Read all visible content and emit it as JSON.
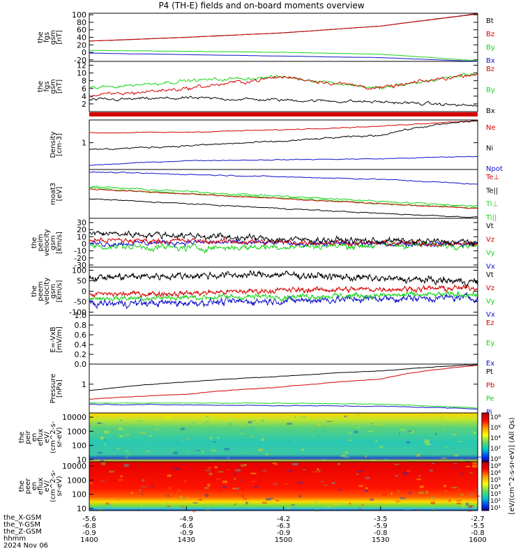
{
  "title": "P4 (TH-E) fields and on-board moments overview",
  "colors": {
    "black": "#000000",
    "red": "#d40000",
    "green": "#16d416",
    "blue": "#1010c8"
  },
  "panels": [
    {
      "id": "fgs-gsm-big",
      "ylabel": [
        "the",
        "fgs",
        "gsm",
        "[nT]"
      ],
      "ylim": [
        -24,
        104
      ],
      "yticks": [
        "100",
        "80",
        "60",
        "40",
        "20",
        "0",
        "-20"
      ],
      "yticks_v": [
        100,
        80,
        60,
        40,
        20,
        0,
        -20
      ],
      "legend": [
        {
          "text": "Bt",
          "color": "#000000"
        },
        {
          "text": "Bz",
          "color": "#d40000"
        },
        {
          "text": "By",
          "color": "#16d416"
        },
        {
          "text": "Bx",
          "color": "#1010c8"
        }
      ]
    },
    {
      "id": "fgs-gsm-small",
      "ylabel": [
        "the",
        "fgs",
        "gsm",
        "[nT]"
      ],
      "ylim": [
        0,
        13
      ],
      "yticks": [
        "12",
        "10",
        "8",
        "6",
        "4",
        "2"
      ],
      "yticks_v": [
        12,
        10,
        8,
        6,
        4,
        2
      ],
      "legend": [
        {
          "text": "Bz",
          "color": "#d40000"
        },
        {
          "text": "By",
          "color": "#16d416"
        },
        {
          "text": "Bx",
          "color": "#000000"
        }
      ]
    },
    {
      "id": "density",
      "ylabel": [
        "Density",
        "[cm-3]"
      ],
      "log": true,
      "ylim": [
        0.15,
        5
      ],
      "yticks": [
        "1"
      ],
      "yticks_v": [
        1
      ],
      "legend": [
        {
          "text": "Ne",
          "color": "#d40000"
        },
        {
          "text": "Ni",
          "color": "#000000"
        },
        {
          "text": "Npot",
          "color": "#1010c8"
        }
      ]
    },
    {
      "id": "temperature",
      "ylabel": [
        "moat3",
        "[eV]"
      ],
      "ylim": [
        0,
        1
      ],
      "yticks": [],
      "yticks_v": [],
      "legend": [
        {
          "text": "Te⊥",
          "color": "#d40000"
        },
        {
          "text": "Te||",
          "color": "#000000"
        },
        {
          "text": "Ti⊥",
          "color": "#16d416"
        },
        {
          "text": "Ti||",
          "color": "#16d416"
        }
      ]
    },
    {
      "id": "peim-velocity",
      "ylabel": [
        "the",
        "peim",
        "velocity",
        "gsm",
        "[km/s]"
      ],
      "ylim": [
        -33,
        36
      ],
      "yticks": [
        "30",
        "20",
        "10",
        "0",
        "-10",
        "-20",
        "-30"
      ],
      "yticks_v": [
        30,
        20,
        10,
        0,
        -10,
        -20,
        -30
      ],
      "legend": [
        {
          "text": "Vt",
          "color": "#000000"
        },
        {
          "text": "Vz",
          "color": "#d40000"
        },
        {
          "text": "Vy",
          "color": "#16d416"
        },
        {
          "text": "Vx",
          "color": "#1010c8"
        }
      ]
    },
    {
      "id": "peem-velocity",
      "ylabel": [
        "the",
        "peem",
        "velocity",
        "gsm",
        "[km/s]"
      ],
      "ylim": [
        -115,
        115
      ],
      "yticks": [
        "100",
        "50",
        "0",
        "-50",
        "-100"
      ],
      "yticks_v": [
        100,
        50,
        0,
        -50,
        -100
      ],
      "legend": [
        {
          "text": "Vt",
          "color": "#000000"
        },
        {
          "text": "Vz",
          "color": "#d40000"
        },
        {
          "text": "Vy",
          "color": "#16d416"
        },
        {
          "text": "Vx",
          "color": "#1010c8"
        }
      ]
    },
    {
      "id": "efield",
      "ylabel": [
        "E=-VxB",
        "[mV/m]"
      ],
      "ylim": [
        0,
        1
      ],
      "yticks": [
        "1.0",
        "0.8",
        "0.6",
        "0.4",
        "0.2",
        "0.0"
      ],
      "yticks_v": [
        1.0,
        0.8,
        0.6,
        0.4,
        0.2,
        0.0
      ],
      "legend": [
        {
          "text": "Ez",
          "color": "#d40000"
        },
        {
          "text": "Ey",
          "color": "#16d416"
        },
        {
          "text": "Ex",
          "color": "#1010c8"
        }
      ]
    },
    {
      "id": "pressure",
      "ylabel": [
        "Pressure",
        "[nPa]"
      ],
      "log": true,
      "ylim": [
        0.1,
        5
      ],
      "yticks": [
        "1"
      ],
      "yticks_v": [
        1
      ],
      "legend": [
        {
          "text": "Pt",
          "color": "#000000"
        },
        {
          "text": "Pb",
          "color": "#d40000"
        },
        {
          "text": "Pe",
          "color": "#16d416"
        },
        {
          "text": "Pi",
          "color": "#1010c8"
        }
      ]
    },
    {
      "id": "peir-spec",
      "ylabel": [
        "the",
        "peir",
        "en",
        "eflux",
        "eV/",
        "(cm^2-s-",
        "sr-eV)"
      ],
      "log": true,
      "ylim": [
        7,
        20000
      ],
      "yticks": [
        "10000",
        "1000",
        "100",
        "10"
      ],
      "yticks_v": [
        10000,
        1000,
        100,
        10
      ],
      "legend": []
    },
    {
      "id": "peer-spec",
      "ylabel": [
        "the",
        "peer",
        "en",
        "eflux",
        "eV/",
        "(cm^2-s-",
        "sr-eV)"
      ],
      "log": true,
      "ylim": [
        7,
        20000
      ],
      "yticks": [
        "10000",
        "1000",
        "100",
        "10"
      ],
      "yticks_v": [
        10000,
        1000,
        100,
        10
      ],
      "legend": []
    }
  ],
  "colorbar": {
    "label": "[eV/(cm^2-s-sr-eV)] (All Qs)",
    "ticks": [
      "10⁸",
      "10⁶",
      "10⁴",
      "10²",
      "10⁰"
    ],
    "ticks2": [
      "10⁸",
      "10⁶",
      "10⁵",
      "10⁴",
      "10³",
      "10²",
      "10¹"
    ]
  },
  "xaxis": {
    "x_values": [
      "1400",
      "1430",
      "1500",
      "1530",
      "1600"
    ],
    "rows": [
      {
        "label": "the_X-GSM",
        "values": [
          "-5.6",
          "-4.9",
          "-4.2",
          "-3.5",
          "-2.7"
        ]
      },
      {
        "label": "the_Y-GSM",
        "values": [
          "-6.8",
          "-6.6",
          "-6.3",
          "-5.9",
          "-5.5"
        ]
      },
      {
        "label": "the_Z-GSM",
        "values": [
          "-0.9",
          "-0.9",
          "-0.9",
          "-0.8",
          "-0.8"
        ]
      },
      {
        "label": "hhmm",
        "values": [
          "1400",
          "1430",
          "1500",
          "1530",
          "1600"
        ]
      }
    ],
    "date": "2024 Nov 06"
  },
  "chart_data": [
    {
      "type": "line",
      "title": "P4 (TH-E) fields and on-board moments overview",
      "ylabel": "the fgs gsm [nT]",
      "ylim": [
        -24,
        104
      ],
      "x": [
        "1400",
        "1430",
        "1500",
        "1530",
        "1600"
      ],
      "series": [
        {
          "name": "Bt",
          "values": [
            30,
            40,
            52,
            70,
            103
          ]
        },
        {
          "name": "Bz",
          "values": [
            30,
            40,
            52,
            70,
            102
          ]
        },
        {
          "name": "By",
          "values": [
            5,
            3,
            0,
            -5,
            -22
          ]
        },
        {
          "name": "Bx",
          "values": [
            -2,
            -6,
            -10,
            -14,
            -24
          ]
        }
      ]
    },
    {
      "type": "line",
      "ylabel": "the fgs gsm [nT]",
      "ylim": [
        0,
        13
      ],
      "x": [
        "1400",
        "1430",
        "1500",
        "1530",
        "1600"
      ],
      "series": [
        {
          "name": "Bz",
          "values": [
            4,
            6,
            9,
            6,
            10
          ]
        },
        {
          "name": "By",
          "values": [
            6,
            8,
            9,
            6,
            10
          ]
        },
        {
          "name": "Bx",
          "values": [
            3,
            3.5,
            3,
            2.5,
            1.5
          ]
        }
      ]
    },
    {
      "type": "line",
      "ylabel": "Density [cm-3]",
      "log": true,
      "x": [
        "1400",
        "1430",
        "1500",
        "1530",
        "1600"
      ],
      "series": [
        {
          "name": "Ne",
          "values": [
            2.0,
            2.1,
            2.5,
            3.2,
            4.8
          ]
        },
        {
          "name": "Ni",
          "values": [
            0.6,
            0.8,
            1.1,
            1.7,
            4.8
          ]
        },
        {
          "name": "Npot",
          "values": [
            0.2,
            0.28,
            0.3,
            0.32,
            0.38
          ]
        }
      ]
    },
    {
      "type": "line",
      "ylabel": "moat3 [eV]",
      "x": [
        "1400",
        "1430",
        "1500",
        "1530",
        "1600"
      ],
      "series": [
        {
          "name": "Te⊥",
          "values": [
            0.6,
            0.5,
            0.4,
            0.3,
            0.2
          ]
        },
        {
          "name": "Te||",
          "values": [
            0.4,
            0.3,
            0.2,
            0.1,
            0.02
          ]
        },
        {
          "name": "Ti⊥",
          "values": [
            0.65,
            0.55,
            0.45,
            0.35,
            0.25
          ]
        },
        {
          "name": "Ti||",
          "values": [
            0.62,
            0.5,
            0.42,
            0.3,
            0.22
          ]
        }
      ]
    },
    {
      "type": "line",
      "ylabel": "the peim velocity gsm [km/s]",
      "ylim": [
        -33,
        36
      ],
      "x": [
        "1400",
        "1430",
        "1500",
        "1530",
        "1600"
      ],
      "series": [
        {
          "name": "Vt",
          "values": [
            15,
            12,
            6,
            4,
            2
          ]
        },
        {
          "name": "Vz",
          "values": [
            5,
            4,
            2,
            1,
            0
          ]
        },
        {
          "name": "Vy",
          "values": [
            -3,
            -6,
            -4,
            -2,
            -1
          ]
        },
        {
          "name": "Vx",
          "values": [
            0,
            2,
            1,
            0,
            0
          ]
        }
      ]
    },
    {
      "type": "line",
      "ylabel": "the peem velocity gsm [km/s]",
      "ylim": [
        -115,
        115
      ],
      "x": [
        "1400",
        "1430",
        "1500",
        "1530",
        "1600"
      ],
      "series": [
        {
          "name": "Vt",
          "values": [
            65,
            75,
            80,
            60,
            45
          ]
        },
        {
          "name": "Vz",
          "values": [
            -15,
            -10,
            5,
            10,
            15
          ]
        },
        {
          "name": "Vy",
          "values": [
            -35,
            -30,
            -25,
            -20,
            -15
          ]
        },
        {
          "name": "Vx",
          "values": [
            -60,
            -55,
            -45,
            -35,
            -30
          ]
        }
      ]
    },
    {
      "type": "line",
      "ylabel": "E=-VxB [mV/m]",
      "ylim": [
        0,
        1
      ],
      "series": []
    },
    {
      "type": "line",
      "ylabel": "Pressure [nPa]",
      "log": true,
      "x": [
        "1400",
        "1430",
        "1500",
        "1530",
        "1600"
      ],
      "series": [
        {
          "name": "Pt",
          "values": [
            0.6,
            1.2,
            1.9,
            2.9,
            4.8
          ]
        },
        {
          "name": "Pb",
          "values": [
            0.3,
            0.45,
            0.8,
            1.5,
            4.5
          ]
        },
        {
          "name": "Pe",
          "values": [
            0.22,
            0.22,
            0.22,
            0.2,
            0.15
          ]
        },
        {
          "name": "Pi",
          "values": [
            0.2,
            0.19,
            0.18,
            0.17,
            0.14
          ]
        }
      ]
    },
    {
      "type": "heatmap",
      "ylabel": "the peir en eflux eV/(cm^2-s-sr-eV)",
      "log": true,
      "ylim": [
        7,
        20000
      ],
      "colorbar": "[eV/(cm^2-s-sr-eV)] (All Qs)"
    },
    {
      "type": "heatmap",
      "ylabel": "the peer en eflux eV/(cm^2-s-sr-eV)",
      "log": true,
      "ylim": [
        7,
        20000
      ],
      "colorbar": "[eV/(cm^2-s-sr-eV)] (All Qs)"
    }
  ]
}
